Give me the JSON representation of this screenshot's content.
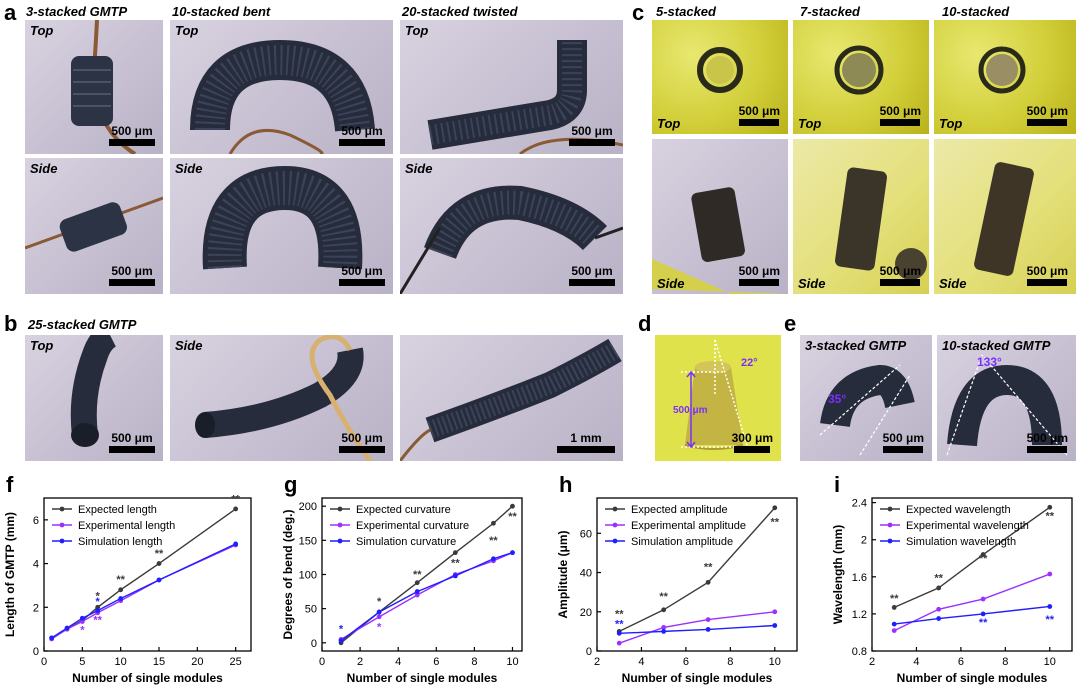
{
  "panel_a": {
    "letter": "a",
    "titles": [
      "3-stacked GMTP",
      "10-stacked bent",
      "20-stacked twisted"
    ],
    "view_top": "Top",
    "view_side": "Side",
    "scale": "500 μm"
  },
  "panel_b": {
    "letter": "b",
    "title": "25-stacked GMTP",
    "view_top": "Top",
    "view_side": "Side",
    "scale1": "500 μm",
    "scale2": "500 μm",
    "scale3": "1 mm"
  },
  "panel_c": {
    "letter": "c",
    "titles": [
      "5-stacked",
      "7-stacked",
      "10-stacked"
    ],
    "view_top": "Top",
    "view_side": "Side",
    "scale": "500 μm"
  },
  "panel_d": {
    "letter": "d",
    "angle": "22°",
    "height": "500 μm",
    "scale": "300 μm"
  },
  "panel_e": {
    "letter": "e",
    "title1": "3-stacked GMTP",
    "title2": "10-stacked GMTP",
    "angle1": "35°",
    "angle2": "133°",
    "scale": "500 μm"
  },
  "colors": {
    "expected": "#3a3a3a",
    "experimental": "#9b30ff",
    "simulation": "#1f1fff"
  },
  "chart_data": [
    {
      "panel": "f",
      "type": "line",
      "xlabel": "Number of single modules",
      "ylabel": "Length of GMTP (mm)",
      "xlim": [
        0,
        27
      ],
      "ylim": [
        0,
        7
      ],
      "xticks": [
        0,
        5,
        10,
        15,
        20,
        25
      ],
      "yticks": [
        0,
        2,
        4,
        6
      ],
      "series": [
        {
          "name": "Expected length",
          "color": "#3a3a3a",
          "x": [
            1,
            3,
            5,
            7,
            10,
            15,
            25
          ],
          "y": [
            0.6,
            1.0,
            1.4,
            2.0,
            2.8,
            4.0,
            6.5
          ]
        },
        {
          "name": "Experimental length",
          "color": "#9b30ff",
          "x": [
            1,
            3,
            5,
            7,
            10,
            15,
            25
          ],
          "y": [
            0.55,
            1.0,
            1.35,
            1.75,
            2.3,
            3.25,
            4.85
          ]
        },
        {
          "name": "Simulation length",
          "color": "#1f1fff",
          "x": [
            1,
            3,
            5,
            7,
            10,
            15,
            25
          ],
          "y": [
            0.6,
            1.05,
            1.5,
            1.85,
            2.4,
            3.25,
            4.9
          ]
        }
      ],
      "annotations": [
        {
          "text": "*",
          "x": 7,
          "y": 2.35,
          "color": "#3a3a3a"
        },
        {
          "text": "*",
          "x": 7,
          "y": 2.1,
          "color": "#1f1fff"
        },
        {
          "text": "**",
          "x": 10,
          "y": 3.1,
          "color": "#3a3a3a"
        },
        {
          "text": "**",
          "x": 15,
          "y": 4.3,
          "color": "#3a3a3a"
        },
        {
          "text": "**",
          "x": 25,
          "y": 6.8,
          "color": "#3a3a3a"
        },
        {
          "text": "*",
          "x": 5,
          "y": 0.8,
          "color": "#9b30ff"
        },
        {
          "text": "**",
          "x": 7,
          "y": 1.25,
          "color": "#9b30ff"
        }
      ]
    },
    {
      "panel": "g",
      "type": "line",
      "xlabel": "Number of single modules",
      "ylabel": "Degrees of bend (deg.)",
      "xlim": [
        0,
        10.5
      ],
      "ylim": [
        -12,
        212
      ],
      "xticks": [
        0,
        2,
        4,
        6,
        8,
        10
      ],
      "yticks": [
        0,
        50,
        100,
        150,
        200
      ],
      "series": [
        {
          "name": "Expected curvature",
          "color": "#3a3a3a",
          "x": [
            1,
            3,
            5,
            7,
            9,
            10
          ],
          "y": [
            0,
            45,
            88,
            132,
            175,
            200
          ]
        },
        {
          "name": "Experimental curvature",
          "color": "#9b30ff",
          "x": [
            1,
            3,
            5,
            7,
            9,
            10
          ],
          "y": [
            5,
            38,
            70,
            100,
            120,
            132
          ]
        },
        {
          "name": "Simulation curvature",
          "color": "#1f1fff",
          "x": [
            1,
            3,
            5,
            7,
            9,
            10
          ],
          "y": [
            3,
            45,
            75,
            98,
            123,
            132
          ]
        }
      ],
      "annotations": [
        {
          "text": "*",
          "x": 1,
          "y": 15,
          "color": "#1f1fff"
        },
        {
          "text": "*",
          "x": 3,
          "y": 55,
          "color": "#3a3a3a"
        },
        {
          "text": "*",
          "x": 3,
          "y": 18,
          "color": "#9b30ff"
        },
        {
          "text": "**",
          "x": 5,
          "y": 95,
          "color": "#3a3a3a"
        },
        {
          "text": "**",
          "x": 7,
          "y": 112,
          "color": "#3a3a3a"
        },
        {
          "text": "**",
          "x": 9,
          "y": 145,
          "color": "#3a3a3a"
        },
        {
          "text": "**",
          "x": 10,
          "y": 180,
          "color": "#3a3a3a"
        }
      ]
    },
    {
      "panel": "h",
      "type": "line",
      "xlabel": "Number of single modules",
      "ylabel": "Amplitude (μm)",
      "xlim": [
        2,
        11
      ],
      "ylim": [
        0,
        78
      ],
      "xticks": [
        2,
        4,
        6,
        8,
        10
      ],
      "yticks": [
        0,
        20,
        40,
        60
      ],
      "series": [
        {
          "name": "Expected amplitude",
          "color": "#3a3a3a",
          "x": [
            3,
            5,
            7,
            10
          ],
          "y": [
            10,
            21,
            35,
            73
          ]
        },
        {
          "name": "Experimental amplitude",
          "color": "#9b30ff",
          "x": [
            3,
            5,
            7,
            10
          ],
          "y": [
            4,
            12,
            16,
            20
          ]
        },
        {
          "name": "Simulation amplitude",
          "color": "#1f1fff",
          "x": [
            3,
            5,
            7,
            10
          ],
          "y": [
            9,
            10,
            11,
            13
          ]
        }
      ],
      "annotations": [
        {
          "text": "**",
          "x": 3,
          "y": 17,
          "color": "#3a3a3a"
        },
        {
          "text": "**",
          "x": 3,
          "y": 12,
          "color": "#1f1fff"
        },
        {
          "text": "**",
          "x": 5,
          "y": 26,
          "color": "#3a3a3a"
        },
        {
          "text": "**",
          "x": 7,
          "y": 41,
          "color": "#3a3a3a"
        },
        {
          "text": "**",
          "x": 10,
          "y": 64,
          "color": "#3a3a3a"
        }
      ]
    },
    {
      "panel": "i",
      "type": "line",
      "xlabel": "Number of single modules",
      "ylabel": "Wavelength (mm)",
      "xlim": [
        2,
        11
      ],
      "ylim": [
        0.8,
        2.45
      ],
      "xticks": [
        2,
        4,
        6,
        8,
        10
      ],
      "yticks": [
        0.8,
        1.2,
        1.6,
        2.0,
        2.4
      ],
      "yticklabels": [
        "0.8",
        "1.2",
        "1.6",
        "2",
        "2.4"
      ],
      "series": [
        {
          "name": "Expected wavelength",
          "color": "#3a3a3a",
          "x": [
            3,
            5,
            7,
            10
          ],
          "y": [
            1.27,
            1.48,
            1.84,
            2.35
          ]
        },
        {
          "name": "Experimental wavelength",
          "color": "#9b30ff",
          "x": [
            3,
            5,
            7,
            10
          ],
          "y": [
            1.02,
            1.25,
            1.36,
            1.63
          ]
        },
        {
          "name": "Simulation wavelength",
          "color": "#1f1fff",
          "x": [
            3,
            5,
            7,
            10
          ],
          "y": [
            1.09,
            1.15,
            1.2,
            1.28
          ]
        }
      ],
      "annotations": [
        {
          "text": "**",
          "x": 3,
          "y": 1.33,
          "color": "#3a3a3a"
        },
        {
          "text": "**",
          "x": 5,
          "y": 1.55,
          "color": "#3a3a3a"
        },
        {
          "text": "**",
          "x": 7,
          "y": 1.76,
          "color": "#3a3a3a"
        },
        {
          "text": "**",
          "x": 10,
          "y": 2.22,
          "color": "#3a3a3a"
        },
        {
          "text": "**",
          "x": 7,
          "y": 1.07,
          "color": "#1f1fff"
        },
        {
          "text": "**",
          "x": 10,
          "y": 1.1,
          "color": "#1f1fff"
        }
      ]
    }
  ],
  "chart_letters": [
    "f",
    "g",
    "h",
    "i"
  ]
}
